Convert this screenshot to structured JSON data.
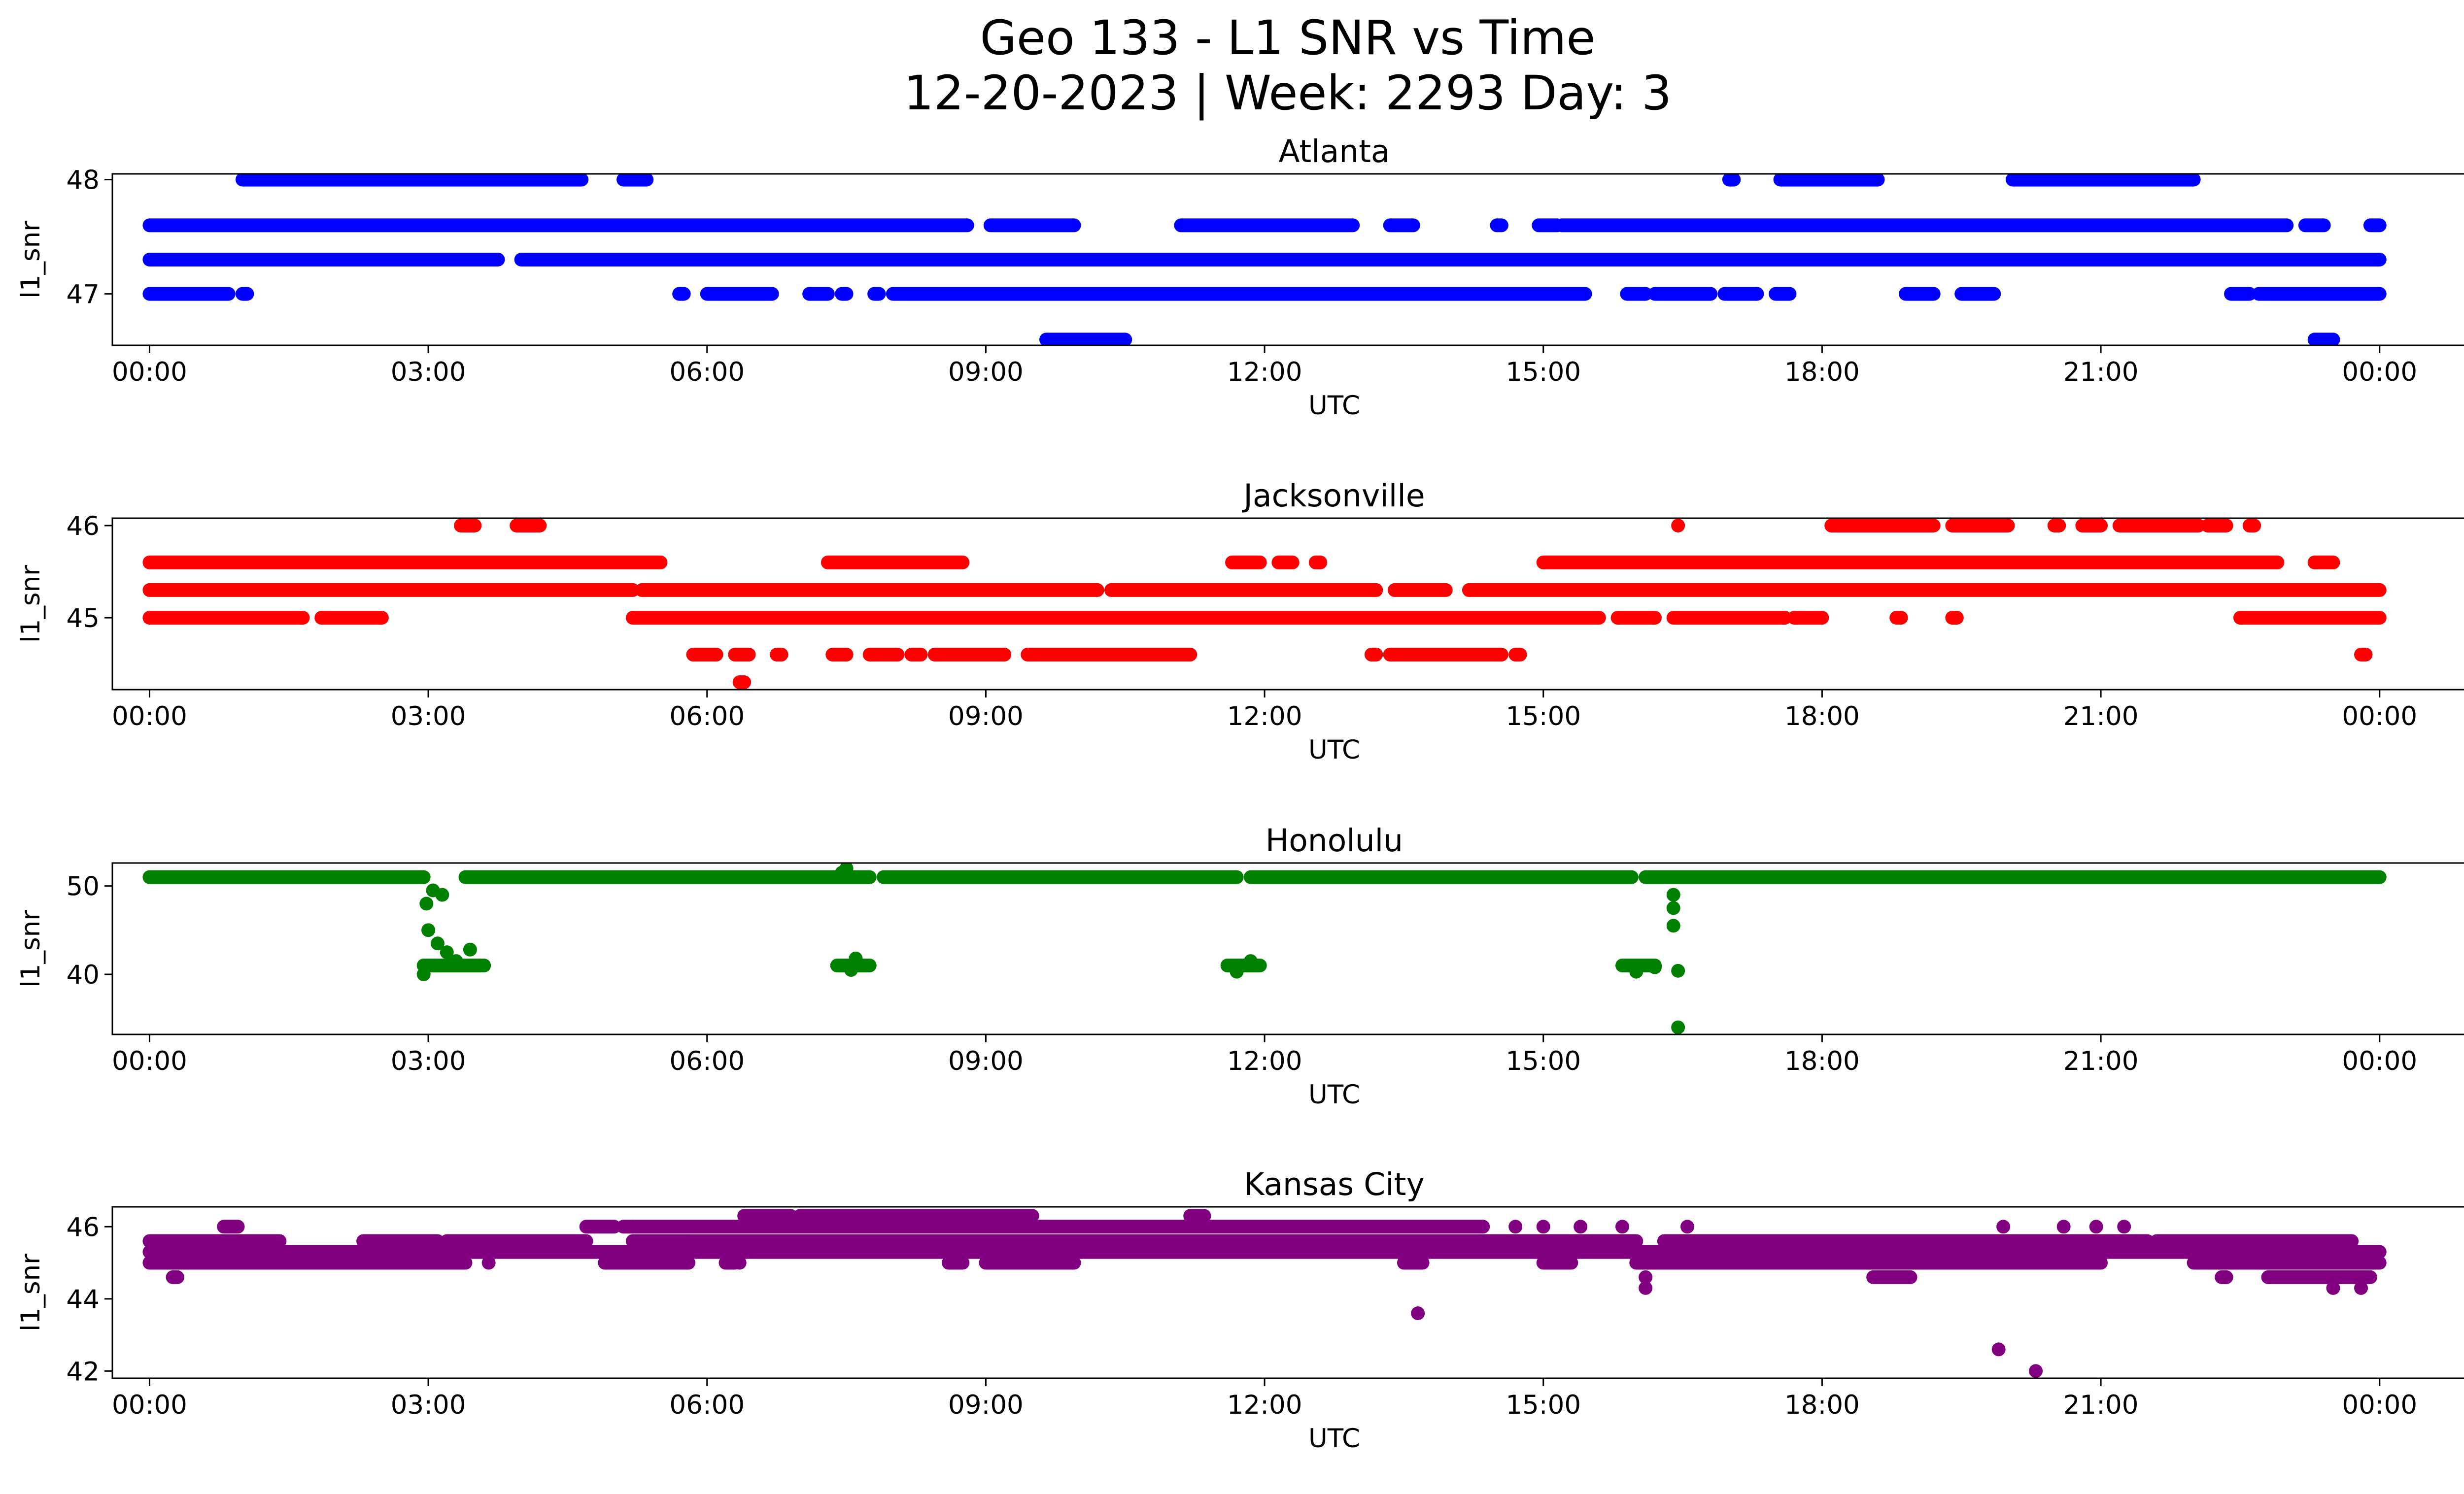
{
  "figure": {
    "title_line1": "Geo 133 - L1 SNR vs Time",
    "title_line2": "12-20-2023 | Week: 2293 Day: 3"
  },
  "chart_data": [
    {
      "type": "scatter",
      "title": "Atlanta",
      "xlabel": "UTC",
      "ylabel": "l1_snr",
      "color": "#0000ff",
      "xlim_hours": [
        -0.4,
        25.9
      ],
      "ylim": [
        46.55,
        48.05
      ],
      "x_ticks": [
        "00:00",
        "03:00",
        "06:00",
        "09:00",
        "12:00",
        "15:00",
        "18:00",
        "21:00",
        "00:00"
      ],
      "y_ticks": [
        {
          "value": 47,
          "label": "47"
        },
        {
          "value": 48,
          "label": "48"
        }
      ],
      "bands": [
        {
          "y": 48.0,
          "segments": [
            [
              1.0,
              4.65
            ],
            [
              5.1,
              5.35
            ],
            [
              17.0,
              17.05
            ],
            [
              17.55,
              18.6
            ],
            [
              20.05,
              22.0
            ]
          ]
        },
        {
          "y": 47.6,
          "segments": [
            [
              0.0,
              8.8
            ],
            [
              9.05,
              9.95
            ],
            [
              11.1,
              12.95
            ],
            [
              13.35,
              13.6
            ],
            [
              14.5,
              14.55
            ],
            [
              14.95,
              15.15
            ],
            [
              15.2,
              23.0
            ],
            [
              23.2,
              23.4
            ],
            [
              23.9,
              24.0
            ]
          ]
        },
        {
          "y": 47.3,
          "segments": [
            [
              0.0,
              3.75
            ],
            [
              4.0,
              24.0
            ]
          ]
        },
        {
          "y": 47.0,
          "segments": [
            [
              0.0,
              0.85
            ],
            [
              1.0,
              1.05
            ],
            [
              5.7,
              5.75
            ],
            [
              6.0,
              6.7
            ],
            [
              7.1,
              7.3
            ],
            [
              7.45,
              7.5
            ],
            [
              7.8,
              7.85
            ],
            [
              8.0,
              15.45
            ],
            [
              15.9,
              16.1
            ],
            [
              16.2,
              16.8
            ],
            [
              16.95,
              17.3
            ],
            [
              17.5,
              17.65
            ],
            [
              18.9,
              19.2
            ],
            [
              19.5,
              19.85
            ],
            [
              22.4,
              22.6
            ],
            [
              22.7,
              24.0
            ]
          ]
        },
        {
          "y": 46.6,
          "segments": [
            [
              9.65,
              10.5
            ],
            [
              23.3,
              23.5
            ]
          ]
        }
      ],
      "points": []
    },
    {
      "type": "scatter",
      "title": "Jacksonville",
      "xlabel": "UTC",
      "ylabel": "l1_snr",
      "color": "#ff0000",
      "xlim_hours": [
        -0.4,
        25.9
      ],
      "ylim": [
        44.22,
        46.08
      ],
      "y_ticks": [
        {
          "value": 45,
          "label": "45"
        },
        {
          "value": 46,
          "label": "46"
        }
      ],
      "x_ticks": [
        "00:00",
        "03:00",
        "06:00",
        "09:00",
        "12:00",
        "15:00",
        "18:00",
        "21:00",
        "00:00"
      ],
      "bands": [
        {
          "y": 46.0,
          "segments": [
            [
              3.35,
              3.5
            ],
            [
              3.95,
              4.2
            ],
            [
              18.1,
              19.2
            ],
            [
              19.4,
              20.0
            ],
            [
              20.5,
              20.55
            ],
            [
              20.8,
              21.0
            ],
            [
              21.2,
              22.05
            ],
            [
              22.15,
              22.35
            ],
            [
              22.6,
              22.65
            ]
          ]
        },
        {
          "y": 45.6,
          "segments": [
            [
              0.0,
              5.5
            ],
            [
              7.3,
              8.75
            ],
            [
              11.65,
              11.95
            ],
            [
              12.15,
              12.3
            ],
            [
              12.55,
              12.6
            ],
            [
              15.0,
              22.9
            ],
            [
              23.3,
              23.5
            ]
          ]
        },
        {
          "y": 45.3,
          "segments": [
            [
              0.0,
              5.2
            ],
            [
              5.3,
              10.2
            ],
            [
              10.35,
              13.2
            ],
            [
              13.4,
              13.95
            ],
            [
              14.2,
              24.0
            ]
          ]
        },
        {
          "y": 45.0,
          "segments": [
            [
              0.0,
              1.65
            ],
            [
              1.85,
              2.5
            ],
            [
              5.2,
              15.6
            ],
            [
              15.8,
              16.2
            ],
            [
              16.4,
              17.6
            ],
            [
              17.7,
              18.0
            ],
            [
              18.8,
              18.85
            ],
            [
              19.4,
              19.45
            ],
            [
              22.5,
              24.0
            ]
          ]
        },
        {
          "y": 44.6,
          "segments": [
            [
              5.85,
              6.1
            ],
            [
              6.3,
              6.45
            ],
            [
              6.75,
              6.8
            ],
            [
              7.35,
              7.5
            ],
            [
              7.75,
              8.05
            ],
            [
              8.2,
              8.3
            ],
            [
              8.45,
              9.2
            ],
            [
              9.45,
              11.2
            ],
            [
              13.15,
              13.2
            ],
            [
              13.35,
              14.55
            ],
            [
              14.7,
              14.75
            ],
            [
              23.8,
              23.85
            ]
          ]
        },
        {
          "y": 44.3,
          "segments": [
            [
              6.35,
              6.4
            ]
          ]
        }
      ],
      "points": [
        {
          "x": 16.45,
          "y": 46.0
        }
      ]
    },
    {
      "type": "scatter",
      "title": "Honolulu",
      "xlabel": "UTC",
      "ylabel": "l1_snr",
      "color": "#008000",
      "xlim_hours": [
        -0.4,
        25.9
      ],
      "ylim": [
        33.2,
        52.6
      ],
      "y_ticks": [
        {
          "value": 40,
          "label": "40"
        },
        {
          "value": 50,
          "label": "50"
        }
      ],
      "x_ticks": [
        "00:00",
        "03:00",
        "06:00",
        "09:00",
        "12:00",
        "15:00",
        "18:00",
        "21:00",
        "00:00"
      ],
      "bands": [
        {
          "y": 51.0,
          "segments": [
            [
              0.0,
              2.95
            ],
            [
              3.4,
              7.75
            ],
            [
              7.9,
              11.7
            ],
            [
              11.85,
              15.95
            ],
            [
              16.1,
              24.0
            ]
          ]
        },
        {
          "y": 41.0,
          "segments": [
            [
              2.95,
              3.6
            ],
            [
              7.4,
              7.75
            ],
            [
              11.6,
              11.95
            ],
            [
              15.85,
              16.2
            ]
          ]
        }
      ],
      "points": [
        {
          "x": 2.95,
          "y": 40.0
        },
        {
          "x": 3.0,
          "y": 45.0
        },
        {
          "x": 2.98,
          "y": 48.0
        },
        {
          "x": 3.05,
          "y": 49.5
        },
        {
          "x": 3.1,
          "y": 43.5
        },
        {
          "x": 3.2,
          "y": 42.5
        },
        {
          "x": 3.3,
          "y": 41.5
        },
        {
          "x": 3.45,
          "y": 42.8
        },
        {
          "x": 3.55,
          "y": 41.0
        },
        {
          "x": 3.15,
          "y": 49.0
        },
        {
          "x": 7.5,
          "y": 52.0
        },
        {
          "x": 7.55,
          "y": 40.5
        },
        {
          "x": 7.6,
          "y": 41.8
        },
        {
          "x": 11.7,
          "y": 40.3
        },
        {
          "x": 11.85,
          "y": 41.5
        },
        {
          "x": 16.0,
          "y": 40.3
        },
        {
          "x": 16.2,
          "y": 40.8
        },
        {
          "x": 16.4,
          "y": 45.5
        },
        {
          "x": 16.4,
          "y": 47.5
        },
        {
          "x": 16.4,
          "y": 49.0
        },
        {
          "x": 16.45,
          "y": 40.4
        },
        {
          "x": 16.45,
          "y": 34.0
        },
        {
          "x": 7.45,
          "y": 51.5
        }
      ]
    },
    {
      "type": "scatter",
      "title": "Kansas City",
      "xlabel": "UTC",
      "ylabel": "l1_snr",
      "color": "#800080",
      "xlim_hours": [
        -0.4,
        25.9
      ],
      "ylim": [
        41.8,
        46.55
      ],
      "y_ticks": [
        {
          "value": 42,
          "label": "42"
        },
        {
          "value": 44,
          "label": "44"
        },
        {
          "value": 46,
          "label": "46"
        }
      ],
      "x_ticks": [
        "00:00",
        "03:00",
        "06:00",
        "09:00",
        "12:00",
        "15:00",
        "18:00",
        "21:00",
        "00:00"
      ],
      "bands": [
        {
          "y": 46.3,
          "segments": [
            [
              6.4,
              6.9
            ],
            [
              7.0,
              9.5
            ],
            [
              11.2,
              11.35
            ]
          ]
        },
        {
          "y": 46.0,
          "segments": [
            [
              0.8,
              0.95
            ],
            [
              4.7,
              5.0
            ],
            [
              5.1,
              14.35
            ]
          ]
        },
        {
          "y": 45.6,
          "segments": [
            [
              0.0,
              1.4
            ],
            [
              2.3,
              3.1
            ],
            [
              3.2,
              4.7
            ],
            [
              5.2,
              16.0
            ],
            [
              16.3,
              21.5
            ],
            [
              21.6,
              23.7
            ]
          ]
        },
        {
          "y": 45.3,
          "segments": [
            [
              0.0,
              24.0
            ]
          ]
        },
        {
          "y": 45.0,
          "segments": [
            [
              0.0,
              3.4
            ],
            [
              4.9,
              5.8
            ],
            [
              6.2,
              6.3
            ],
            [
              8.6,
              8.75
            ],
            [
              9.0,
              9.95
            ],
            [
              13.5,
              13.7
            ],
            [
              15.0,
              15.3
            ],
            [
              16.0,
              21.0
            ],
            [
              22.0,
              24.0
            ]
          ]
        },
        {
          "y": 44.6,
          "segments": [
            [
              0.25,
              0.3
            ],
            [
              18.55,
              18.95
            ],
            [
              22.3,
              22.35
            ],
            [
              22.8,
              23.9
            ]
          ]
        }
      ],
      "points": [
        {
          "x": 3.65,
          "y": 45.0
        },
        {
          "x": 5.2,
          "y": 46.0
        },
        {
          "x": 14.35,
          "y": 46.0
        },
        {
          "x": 14.7,
          "y": 46.0
        },
        {
          "x": 15.0,
          "y": 46.0
        },
        {
          "x": 15.4,
          "y": 46.0
        },
        {
          "x": 15.85,
          "y": 46.0
        },
        {
          "x": 16.55,
          "y": 46.0
        },
        {
          "x": 19.95,
          "y": 46.0
        },
        {
          "x": 20.6,
          "y": 46.0
        },
        {
          "x": 20.95,
          "y": 46.0
        },
        {
          "x": 21.25,
          "y": 46.0
        },
        {
          "x": 13.65,
          "y": 43.6
        },
        {
          "x": 16.1,
          "y": 44.3
        },
        {
          "x": 16.1,
          "y": 44.6
        },
        {
          "x": 19.9,
          "y": 42.6
        },
        {
          "x": 20.3,
          "y": 42.0
        },
        {
          "x": 23.5,
          "y": 44.3
        },
        {
          "x": 23.8,
          "y": 44.3
        },
        {
          "x": 6.35,
          "y": 45.0
        }
      ]
    }
  ]
}
